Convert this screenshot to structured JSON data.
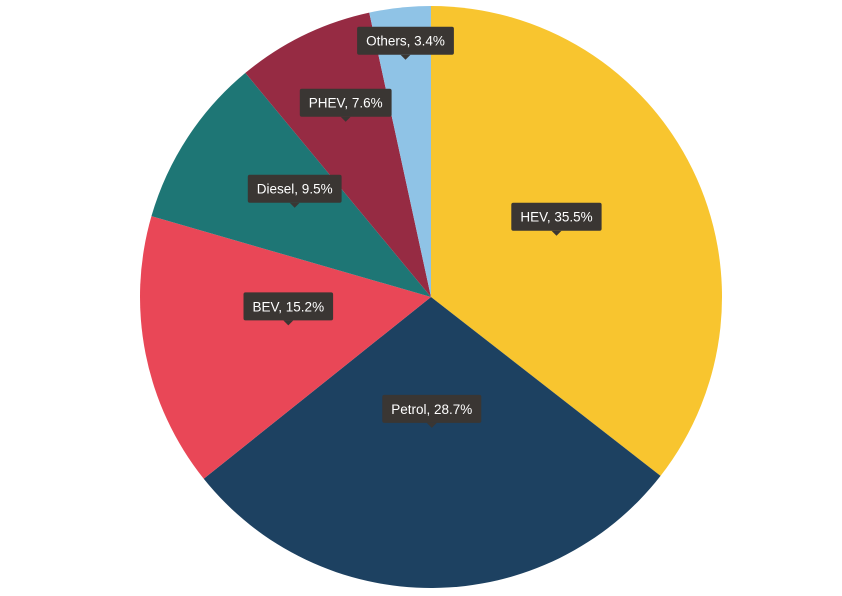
{
  "chart_data": {
    "type": "pie",
    "slices": [
      {
        "label": "HEV, 35.5%",
        "name": "HEV",
        "value": 35.5,
        "color": "#f8c52f"
      },
      {
        "label": "Petrol, 28.7%",
        "name": "Petrol",
        "value": 28.7,
        "color": "#1d4161"
      },
      {
        "label": "BEV, 15.2%",
        "name": "BEV",
        "value": 15.2,
        "color": "#e94757"
      },
      {
        "label": "Diesel, 9.5%",
        "name": "Diesel",
        "value": 9.5,
        "color": "#1e7675"
      },
      {
        "label": "PHEV, 7.6%",
        "name": "PHEV",
        "value": 7.6,
        "color": "#962b43"
      },
      {
        "label": "Others, 3.4%",
        "name": "Others",
        "value": 3.4,
        "color": "#8fc3e6"
      }
    ]
  }
}
